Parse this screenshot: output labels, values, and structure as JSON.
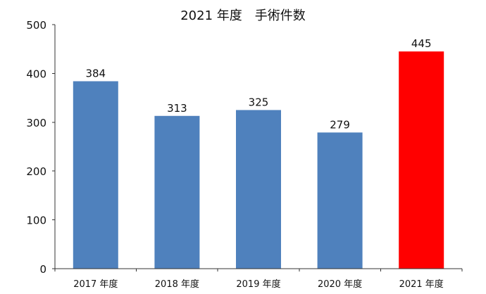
{
  "chart_data": {
    "type": "bar",
    "title": "2021 年度　手術件数",
    "xlabel": "",
    "ylabel": "",
    "categories": [
      "2017 年度",
      "2018 年度",
      "2019 年度",
      "2020 年度",
      "2021 年度"
    ],
    "values": [
      384,
      313,
      325,
      279,
      445
    ],
    "ylim": [
      0,
      500
    ],
    "yticks": [
      0,
      100,
      200,
      300,
      400,
      500
    ],
    "grid": false,
    "legend": "none",
    "colors": {
      "default": "#4f81bd",
      "highlight": "#ff0000"
    },
    "highlight_index": 4
  }
}
